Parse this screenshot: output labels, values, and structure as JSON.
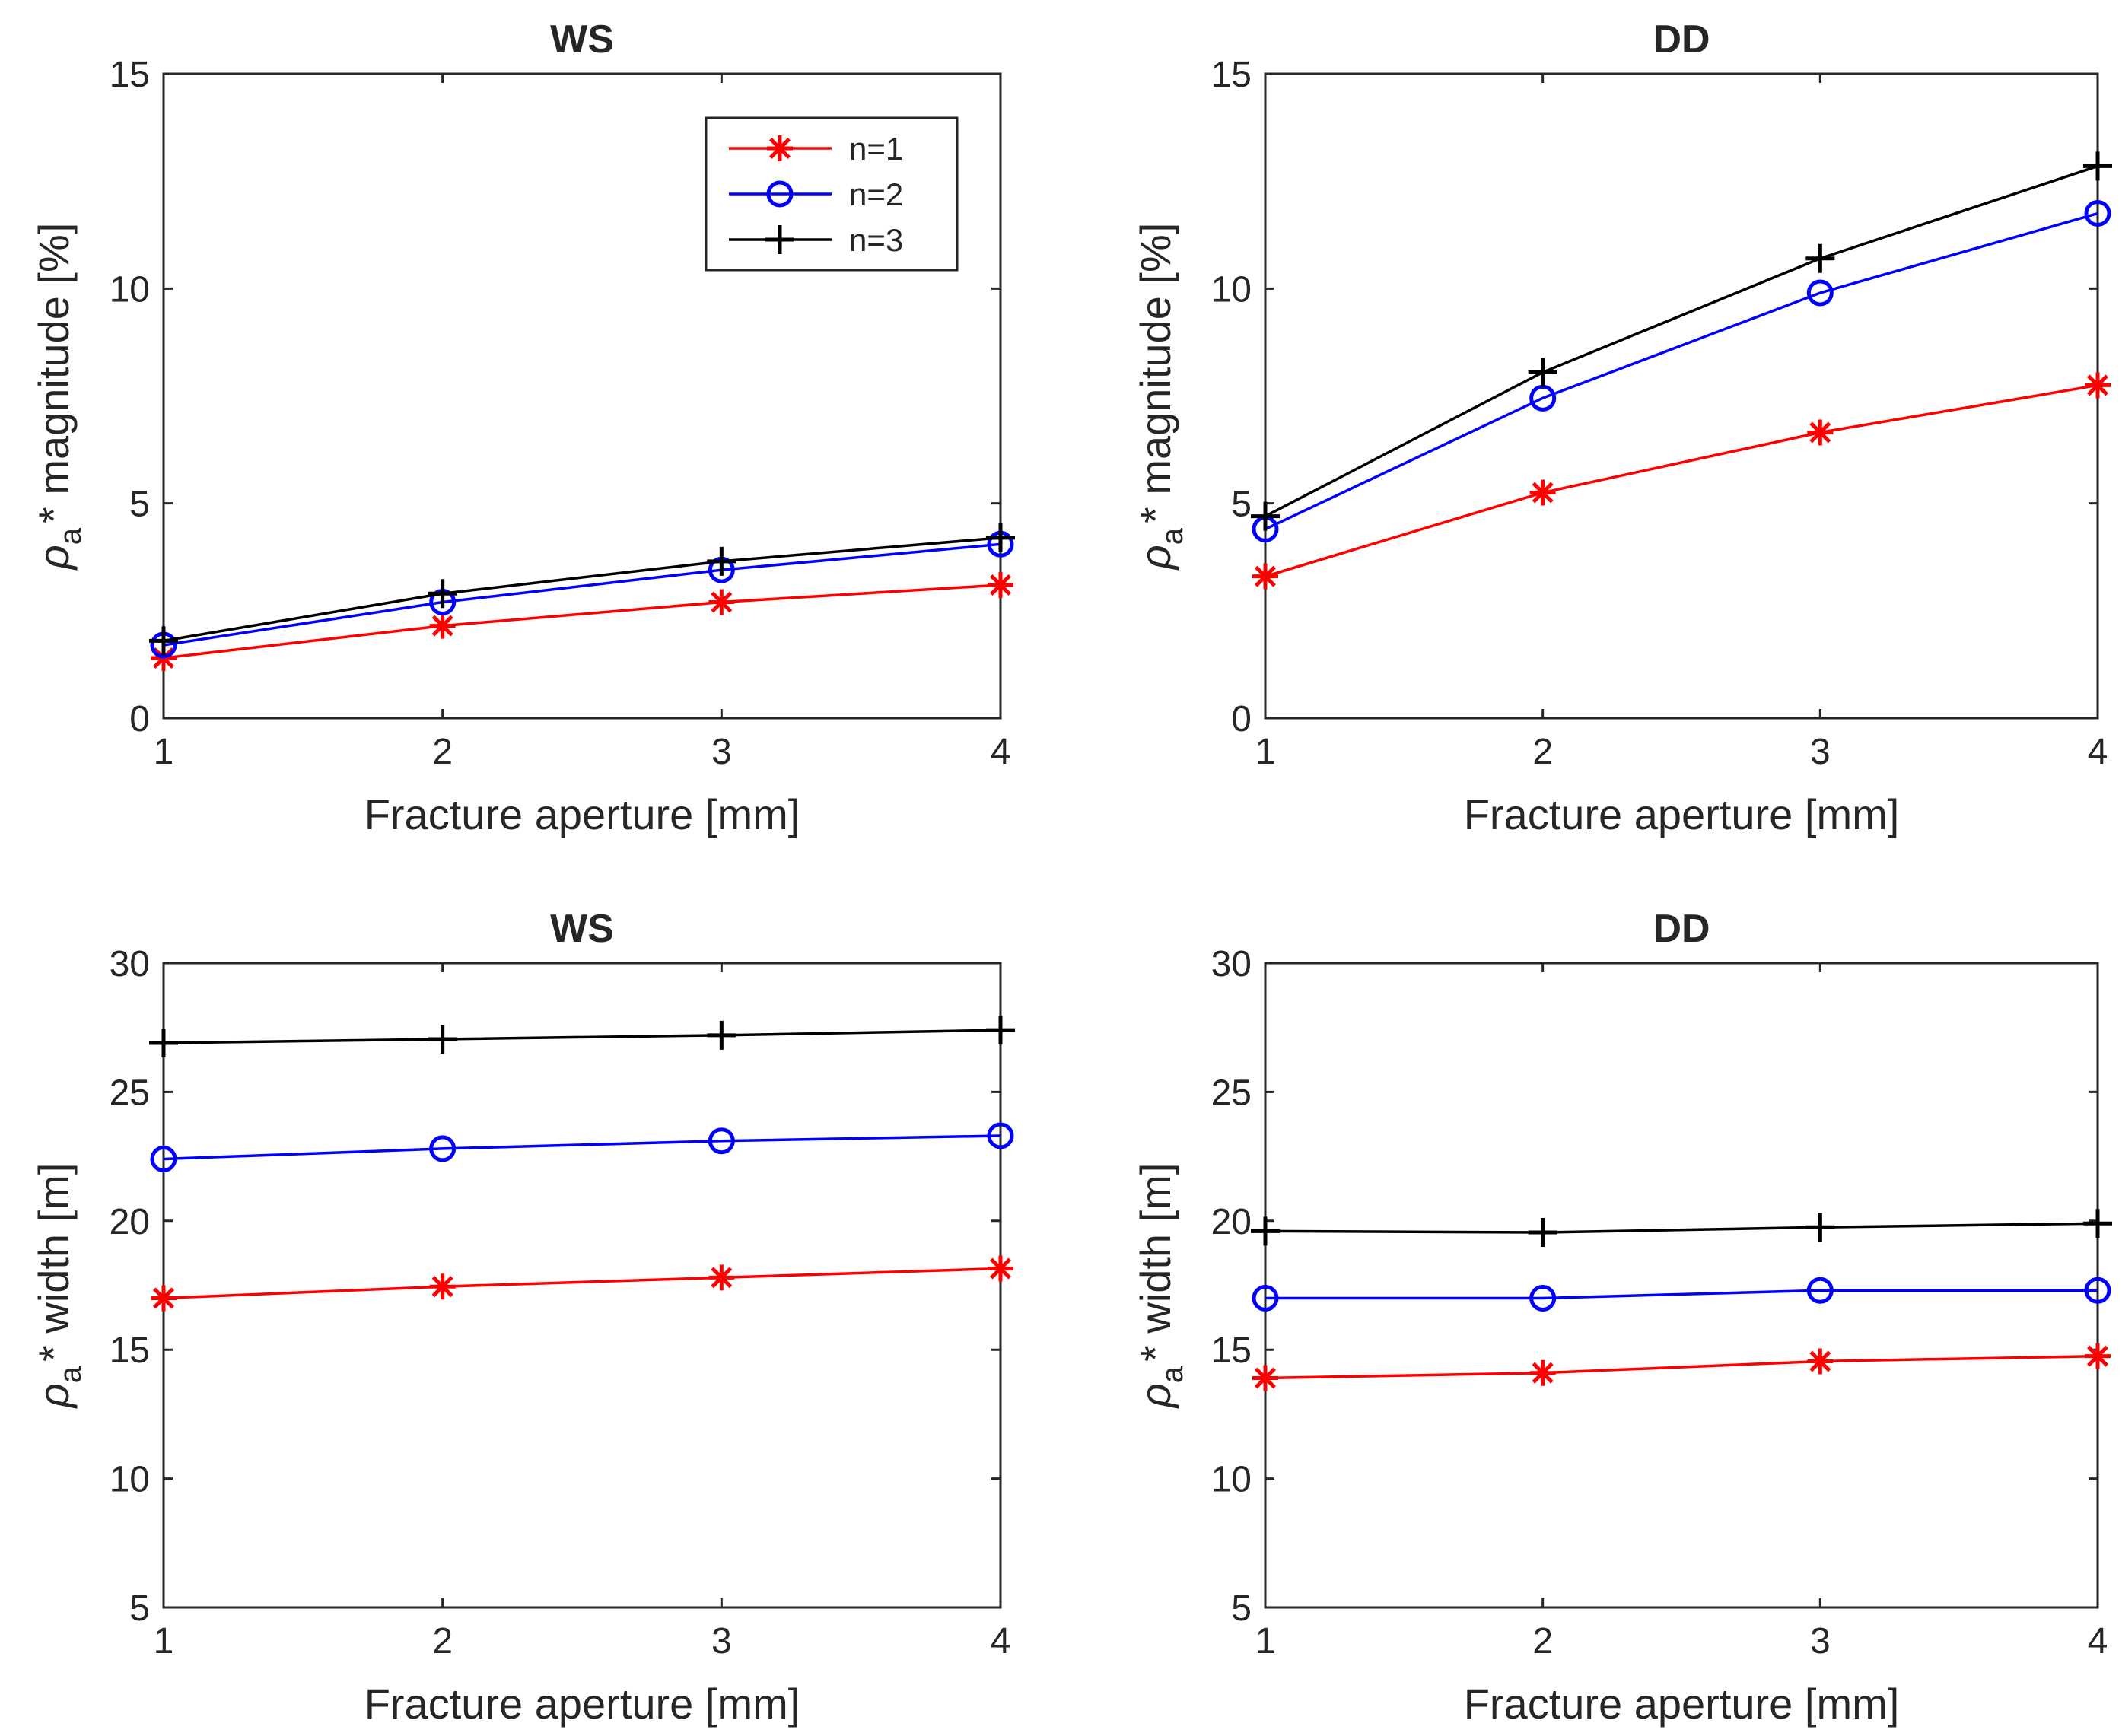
{
  "chart_data": [
    {
      "type": "line",
      "title": "WS",
      "xlabel": "Fracture aperture [mm]",
      "ylabel": {
        "symbol": "ρ",
        "subscript": "a",
        "rest": "* magnitude [%]"
      },
      "x": [
        1,
        2,
        3,
        4
      ],
      "xlim": [
        1,
        4
      ],
      "ylim": [
        0,
        15
      ],
      "xticks": [
        "1",
        "2",
        "3",
        "4"
      ],
      "yticks": [
        "0",
        "5",
        "10",
        "15"
      ],
      "legend": "top-right",
      "series": [
        {
          "name": "n=1",
          "values": [
            1.4,
            2.15,
            2.7,
            3.1
          ]
        },
        {
          "name": "n=2",
          "values": [
            1.7,
            2.7,
            3.45,
            4.05
          ]
        },
        {
          "name": "n=3",
          "values": [
            1.8,
            2.9,
            3.65,
            4.2
          ]
        }
      ]
    },
    {
      "type": "line",
      "title": "DD",
      "xlabel": "Fracture aperture [mm]",
      "ylabel": {
        "symbol": "ρ",
        "subscript": "a",
        "rest": "* magnitude [%]"
      },
      "x": [
        1,
        2,
        3,
        4
      ],
      "xlim": [
        1,
        4
      ],
      "ylim": [
        0,
        15
      ],
      "xticks": [
        "1",
        "2",
        "3",
        "4"
      ],
      "yticks": [
        "0",
        "5",
        "10",
        "15"
      ],
      "series": [
        {
          "name": "n=1",
          "values": [
            3.3,
            5.25,
            6.65,
            7.75
          ]
        },
        {
          "name": "n=2",
          "values": [
            4.4,
            7.45,
            9.9,
            11.75
          ]
        },
        {
          "name": "n=3",
          "values": [
            4.7,
            8.05,
            10.7,
            12.85
          ]
        }
      ]
    },
    {
      "type": "line",
      "title": "WS",
      "xlabel": "Fracture aperture [mm]",
      "ylabel": {
        "symbol": "ρ",
        "subscript": "a",
        "rest": "* width [m]"
      },
      "x": [
        1,
        2,
        3,
        4
      ],
      "xlim": [
        1,
        4
      ],
      "ylim": [
        5,
        30
      ],
      "xticks": [
        "1",
        "2",
        "3",
        "4"
      ],
      "yticks": [
        "5",
        "10",
        "15",
        "20",
        "25",
        "30"
      ],
      "series": [
        {
          "name": "n=1",
          "values": [
            17.0,
            17.45,
            17.8,
            18.15
          ]
        },
        {
          "name": "n=2",
          "values": [
            22.4,
            22.8,
            23.1,
            23.3
          ]
        },
        {
          "name": "n=3",
          "values": [
            26.9,
            27.05,
            27.2,
            27.4
          ]
        }
      ]
    },
    {
      "type": "line",
      "title": "DD",
      "xlabel": "Fracture aperture [mm]",
      "ylabel": {
        "symbol": "ρ",
        "subscript": "a",
        "rest": "* width [m]"
      },
      "x": [
        1,
        2,
        3,
        4
      ],
      "xlim": [
        1,
        4
      ],
      "ylim": [
        5,
        30
      ],
      "xticks": [
        "1",
        "2",
        "3",
        "4"
      ],
      "yticks": [
        "5",
        "10",
        "15",
        "20",
        "25",
        "30"
      ],
      "series": [
        {
          "name": "n=1",
          "values": [
            13.9,
            14.1,
            14.55,
            14.75
          ]
        },
        {
          "name": "n=2",
          "values": [
            17.0,
            17.0,
            17.3,
            17.3
          ]
        },
        {
          "name": "n=3",
          "values": [
            19.6,
            19.55,
            19.75,
            19.9
          ]
        }
      ]
    }
  ],
  "series_styles": [
    {
      "name": "n=1",
      "color": "#ff0000",
      "marker": "asterisk"
    },
    {
      "name": "n=2",
      "color": "#0000ff",
      "marker": "circle"
    },
    {
      "name": "n=3",
      "color": "#000000",
      "marker": "plus"
    }
  ]
}
